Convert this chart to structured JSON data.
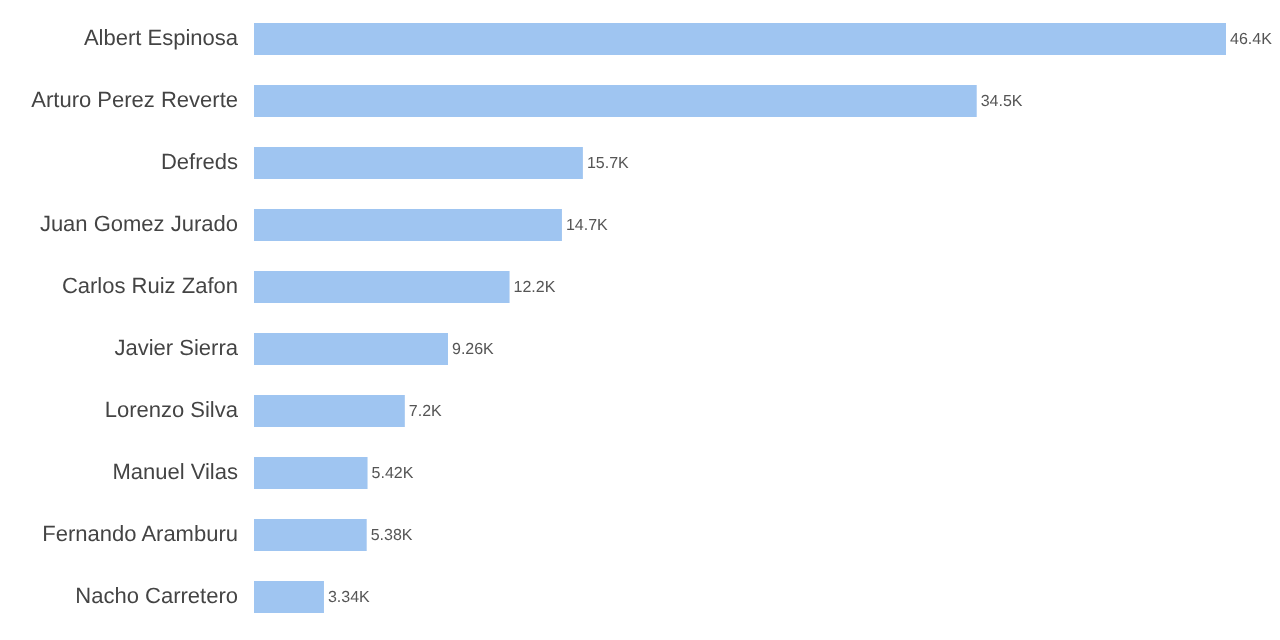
{
  "chart_data": {
    "type": "bar",
    "orientation": "horizontal",
    "categories": [
      "Albert Espinosa",
      "Arturo Perez Reverte",
      "Defreds",
      "Juan Gomez Jurado",
      "Carlos Ruiz Zafon",
      "Javier Sierra",
      "Lorenzo Silva",
      "Manuel Vilas",
      "Fernando Aramburu",
      "Nacho Carretero"
    ],
    "values": [
      46400,
      34500,
      15700,
      14700,
      12200,
      9260,
      7200,
      5420,
      5380,
      3340
    ],
    "value_labels": [
      "46.4K",
      "34.5K",
      "15.7K",
      "14.7K",
      "12.2K",
      "9.26K",
      "7.2K",
      "5.42K",
      "5.38K",
      "3.34K"
    ],
    "color": "#9fc5f1"
  }
}
